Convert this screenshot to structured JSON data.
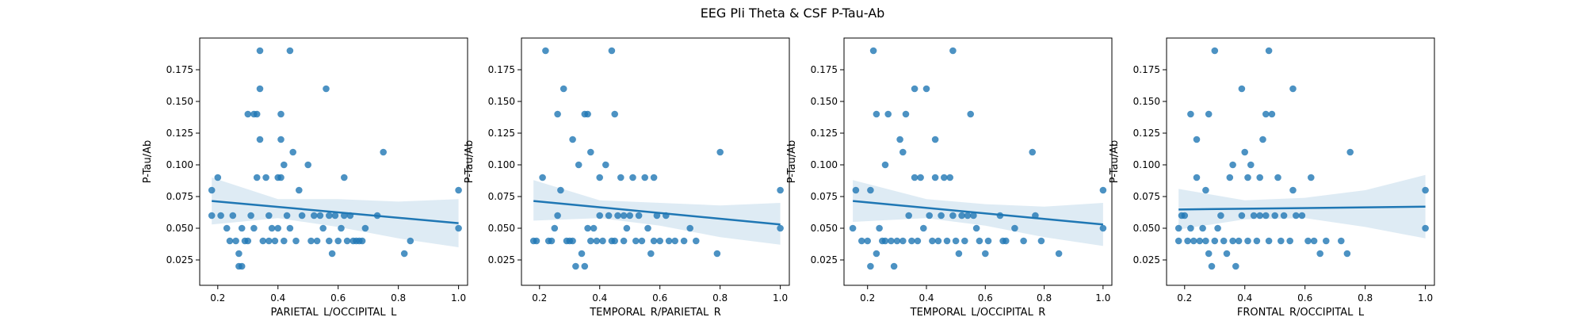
{
  "figure": {
    "title": "EEG Pli Theta & CSF P-Tau-Ab"
  },
  "style": {
    "point_color": "#1f77b4",
    "line_color": "#1f77b4",
    "band_color": "#1f77b4"
  },
  "chart_data": [
    {
      "type": "scatter",
      "xlabel": "PARIETAL_L/OCCIPITAL_L",
      "ylabel": "P-Tau/Ab",
      "xlim": [
        0.14,
        1.03
      ],
      "ylim": [
        0.005,
        0.2
      ],
      "xticks": [
        0.2,
        0.4,
        0.6,
        0.8,
        1.0
      ],
      "xtick_labels": [
        "0.2",
        "0.4",
        "0.6",
        "0.8",
        "1.0"
      ],
      "yticks": [
        0.025,
        0.05,
        0.075,
        0.1,
        0.125,
        0.15,
        0.175
      ],
      "ytick_labels": [
        "0.025",
        "0.050",
        "0.075",
        "0.100",
        "0.125",
        "0.150",
        "0.175"
      ],
      "points": [
        [
          0.18,
          0.08
        ],
        [
          0.18,
          0.06
        ],
        [
          0.2,
          0.09
        ],
        [
          0.21,
          0.06
        ],
        [
          0.23,
          0.05
        ],
        [
          0.24,
          0.04
        ],
        [
          0.25,
          0.06
        ],
        [
          0.26,
          0.04
        ],
        [
          0.27,
          0.03
        ],
        [
          0.27,
          0.02
        ],
        [
          0.28,
          0.02
        ],
        [
          0.28,
          0.05
        ],
        [
          0.29,
          0.04
        ],
        [
          0.3,
          0.04
        ],
        [
          0.3,
          0.14
        ],
        [
          0.31,
          0.06
        ],
        [
          0.32,
          0.14
        ],
        [
          0.32,
          0.05
        ],
        [
          0.33,
          0.09
        ],
        [
          0.33,
          0.14
        ],
        [
          0.34,
          0.19
        ],
        [
          0.34,
          0.16
        ],
        [
          0.34,
          0.12
        ],
        [
          0.35,
          0.04
        ],
        [
          0.36,
          0.09
        ],
        [
          0.37,
          0.06
        ],
        [
          0.37,
          0.04
        ],
        [
          0.38,
          0.05
        ],
        [
          0.39,
          0.04
        ],
        [
          0.4,
          0.05
        ],
        [
          0.4,
          0.09
        ],
        [
          0.41,
          0.14
        ],
        [
          0.41,
          0.12
        ],
        [
          0.41,
          0.09
        ],
        [
          0.42,
          0.1
        ],
        [
          0.42,
          0.04
        ],
        [
          0.43,
          0.06
        ],
        [
          0.44,
          0.05
        ],
        [
          0.44,
          0.19
        ],
        [
          0.45,
          0.11
        ],
        [
          0.46,
          0.04
        ],
        [
          0.47,
          0.08
        ],
        [
          0.48,
          0.06
        ],
        [
          0.5,
          0.1
        ],
        [
          0.51,
          0.04
        ],
        [
          0.52,
          0.06
        ],
        [
          0.53,
          0.04
        ],
        [
          0.54,
          0.06
        ],
        [
          0.55,
          0.05
        ],
        [
          0.56,
          0.16
        ],
        [
          0.57,
          0.06
        ],
        [
          0.57,
          0.04
        ],
        [
          0.58,
          0.03
        ],
        [
          0.59,
          0.06
        ],
        [
          0.6,
          0.04
        ],
        [
          0.61,
          0.05
        ],
        [
          0.62,
          0.09
        ],
        [
          0.62,
          0.06
        ],
        [
          0.63,
          0.04
        ],
        [
          0.64,
          0.06
        ],
        [
          0.65,
          0.04
        ],
        [
          0.66,
          0.04
        ],
        [
          0.67,
          0.04
        ],
        [
          0.68,
          0.04
        ],
        [
          0.69,
          0.05
        ],
        [
          0.73,
          0.06
        ],
        [
          0.75,
          0.11
        ],
        [
          0.82,
          0.03
        ],
        [
          0.84,
          0.04
        ],
        [
          1.0,
          0.08
        ],
        [
          1.0,
          0.05
        ]
      ],
      "regression": {
        "x": [
          0.18,
          1.0
        ],
        "y": [
          0.0715,
          0.054
        ]
      },
      "ci_band": {
        "x": [
          0.18,
          0.4,
          0.6,
          0.8,
          1.0
        ],
        "lower": [
          0.053,
          0.058,
          0.051,
          0.042,
          0.035
        ],
        "upper": [
          0.09,
          0.073,
          0.073,
          0.071,
          0.073
        ]
      }
    },
    {
      "type": "scatter",
      "xlabel": "TEMPORAL_R/PARIETAL_R",
      "ylabel": "P-Tau/Ab",
      "xlim": [
        0.14,
        1.03
      ],
      "ylim": [
        0.005,
        0.2
      ],
      "xticks": [
        0.2,
        0.4,
        0.6,
        0.8,
        1.0
      ],
      "xtick_labels": [
        "0.2",
        "0.4",
        "0.6",
        "0.8",
        "1.0"
      ],
      "yticks": [
        0.025,
        0.05,
        0.075,
        0.1,
        0.125,
        0.15,
        0.175
      ],
      "ytick_labels": [
        "0.025",
        "0.050",
        "0.075",
        "0.100",
        "0.125",
        "0.150",
        "0.175"
      ],
      "points": [
        [
          0.18,
          0.04
        ],
        [
          0.19,
          0.04
        ],
        [
          0.21,
          0.09
        ],
        [
          0.22,
          0.19
        ],
        [
          0.23,
          0.04
        ],
        [
          0.24,
          0.04
        ],
        [
          0.25,
          0.05
        ],
        [
          0.26,
          0.14
        ],
        [
          0.26,
          0.06
        ],
        [
          0.27,
          0.08
        ],
        [
          0.28,
          0.16
        ],
        [
          0.29,
          0.04
        ],
        [
          0.3,
          0.04
        ],
        [
          0.31,
          0.12
        ],
        [
          0.31,
          0.04
        ],
        [
          0.32,
          0.02
        ],
        [
          0.33,
          0.1
        ],
        [
          0.34,
          0.03
        ],
        [
          0.35,
          0.02
        ],
        [
          0.35,
          0.14
        ],
        [
          0.36,
          0.14
        ],
        [
          0.36,
          0.05
        ],
        [
          0.37,
          0.11
        ],
        [
          0.37,
          0.04
        ],
        [
          0.38,
          0.05
        ],
        [
          0.39,
          0.04
        ],
        [
          0.4,
          0.06
        ],
        [
          0.4,
          0.09
        ],
        [
          0.41,
          0.04
        ],
        [
          0.42,
          0.1
        ],
        [
          0.43,
          0.06
        ],
        [
          0.44,
          0.19
        ],
        [
          0.44,
          0.04
        ],
        [
          0.45,
          0.14
        ],
        [
          0.45,
          0.04
        ],
        [
          0.46,
          0.06
        ],
        [
          0.47,
          0.09
        ],
        [
          0.48,
          0.06
        ],
        [
          0.48,
          0.04
        ],
        [
          0.49,
          0.05
        ],
        [
          0.5,
          0.06
        ],
        [
          0.51,
          0.09
        ],
        [
          0.52,
          0.04
        ],
        [
          0.53,
          0.06
        ],
        [
          0.54,
          0.04
        ],
        [
          0.55,
          0.09
        ],
        [
          0.56,
          0.05
        ],
        [
          0.57,
          0.03
        ],
        [
          0.58,
          0.09
        ],
        [
          0.58,
          0.04
        ],
        [
          0.59,
          0.06
        ],
        [
          0.6,
          0.04
        ],
        [
          0.62,
          0.06
        ],
        [
          0.63,
          0.04
        ],
        [
          0.65,
          0.04
        ],
        [
          0.68,
          0.04
        ],
        [
          0.7,
          0.05
        ],
        [
          0.72,
          0.04
        ],
        [
          0.79,
          0.03
        ],
        [
          0.8,
          0.11
        ],
        [
          1.0,
          0.08
        ],
        [
          1.0,
          0.05
        ]
      ],
      "regression": {
        "x": [
          0.18,
          1.0
        ],
        "y": [
          0.0715,
          0.053
        ]
      },
      "ci_band": {
        "x": [
          0.18,
          0.4,
          0.6,
          0.8,
          1.0
        ],
        "lower": [
          0.056,
          0.058,
          0.052,
          0.043,
          0.037
        ],
        "upper": [
          0.088,
          0.072,
          0.07,
          0.068,
          0.07
        ]
      }
    },
    {
      "type": "scatter",
      "xlabel": "TEMPORAL_L/OCCIPITAL_R",
      "ylabel": "P-Tau/Ab",
      "xlim": [
        0.12,
        1.03
      ],
      "ylim": [
        0.005,
        0.2
      ],
      "xticks": [
        0.2,
        0.4,
        0.6,
        0.8,
        1.0
      ],
      "xtick_labels": [
        "0.2",
        "0.4",
        "0.6",
        "0.8",
        "1.0"
      ],
      "yticks": [
        0.025,
        0.05,
        0.075,
        0.1,
        0.125,
        0.15,
        0.175
      ],
      "ytick_labels": [
        "0.025",
        "0.050",
        "0.075",
        "0.100",
        "0.125",
        "0.150",
        "0.175"
      ],
      "points": [
        [
          0.15,
          0.05
        ],
        [
          0.16,
          0.08
        ],
        [
          0.18,
          0.04
        ],
        [
          0.2,
          0.04
        ],
        [
          0.21,
          0.08
        ],
        [
          0.21,
          0.02
        ],
        [
          0.22,
          0.19
        ],
        [
          0.23,
          0.03
        ],
        [
          0.23,
          0.14
        ],
        [
          0.24,
          0.05
        ],
        [
          0.25,
          0.04
        ],
        [
          0.26,
          0.04
        ],
        [
          0.26,
          0.1
        ],
        [
          0.27,
          0.14
        ],
        [
          0.28,
          0.04
        ],
        [
          0.29,
          0.02
        ],
        [
          0.3,
          0.04
        ],
        [
          0.31,
          0.12
        ],
        [
          0.32,
          0.11
        ],
        [
          0.32,
          0.04
        ],
        [
          0.33,
          0.14
        ],
        [
          0.34,
          0.06
        ],
        [
          0.35,
          0.04
        ],
        [
          0.36,
          0.09
        ],
        [
          0.36,
          0.16
        ],
        [
          0.37,
          0.04
        ],
        [
          0.38,
          0.09
        ],
        [
          0.39,
          0.05
        ],
        [
          0.4,
          0.16
        ],
        [
          0.41,
          0.06
        ],
        [
          0.42,
          0.04
        ],
        [
          0.43,
          0.12
        ],
        [
          0.43,
          0.09
        ],
        [
          0.44,
          0.04
        ],
        [
          0.45,
          0.06
        ],
        [
          0.46,
          0.09
        ],
        [
          0.47,
          0.04
        ],
        [
          0.48,
          0.09
        ],
        [
          0.49,
          0.19
        ],
        [
          0.49,
          0.06
        ],
        [
          0.5,
          0.04
        ],
        [
          0.51,
          0.03
        ],
        [
          0.52,
          0.06
        ],
        [
          0.53,
          0.04
        ],
        [
          0.54,
          0.06
        ],
        [
          0.55,
          0.14
        ],
        [
          0.56,
          0.06
        ],
        [
          0.57,
          0.05
        ],
        [
          0.58,
          0.04
        ],
        [
          0.6,
          0.03
        ],
        [
          0.61,
          0.04
        ],
        [
          0.65,
          0.06
        ],
        [
          0.66,
          0.04
        ],
        [
          0.67,
          0.04
        ],
        [
          0.7,
          0.05
        ],
        [
          0.73,
          0.04
        ],
        [
          0.76,
          0.11
        ],
        [
          0.77,
          0.06
        ],
        [
          0.79,
          0.04
        ],
        [
          0.85,
          0.03
        ],
        [
          1.0,
          0.08
        ],
        [
          1.0,
          0.05
        ]
      ],
      "regression": {
        "x": [
          0.15,
          1.0
        ],
        "y": [
          0.0715,
          0.053
        ]
      },
      "ci_band": {
        "x": [
          0.15,
          0.4,
          0.6,
          0.8,
          1.0
        ],
        "lower": [
          0.055,
          0.058,
          0.052,
          0.043,
          0.036
        ],
        "upper": [
          0.088,
          0.073,
          0.069,
          0.067,
          0.07
        ]
      }
    },
    {
      "type": "scatter",
      "xlabel": "FRONTAL_R/OCCIPITAL_L",
      "ylabel": "P-Tau/Ab",
      "xlim": [
        0.14,
        1.03
      ],
      "ylim": [
        0.005,
        0.2
      ],
      "xticks": [
        0.2,
        0.4,
        0.6,
        0.8,
        1.0
      ],
      "xtick_labels": [
        "0.2",
        "0.4",
        "0.6",
        "0.8",
        "1.0"
      ],
      "yticks": [
        0.025,
        0.05,
        0.075,
        0.1,
        0.125,
        0.15,
        0.175
      ],
      "ytick_labels": [
        "0.025",
        "0.050",
        "0.075",
        "0.100",
        "0.125",
        "0.150",
        "0.175"
      ],
      "points": [
        [
          0.18,
          0.05
        ],
        [
          0.18,
          0.04
        ],
        [
          0.19,
          0.06
        ],
        [
          0.2,
          0.06
        ],
        [
          0.21,
          0.04
        ],
        [
          0.22,
          0.05
        ],
        [
          0.22,
          0.14
        ],
        [
          0.23,
          0.04
        ],
        [
          0.24,
          0.09
        ],
        [
          0.24,
          0.12
        ],
        [
          0.25,
          0.04
        ],
        [
          0.26,
          0.05
        ],
        [
          0.27,
          0.08
        ],
        [
          0.27,
          0.04
        ],
        [
          0.28,
          0.14
        ],
        [
          0.28,
          0.03
        ],
        [
          0.29,
          0.02
        ],
        [
          0.3,
          0.19
        ],
        [
          0.3,
          0.04
        ],
        [
          0.31,
          0.05
        ],
        [
          0.32,
          0.06
        ],
        [
          0.33,
          0.04
        ],
        [
          0.34,
          0.03
        ],
        [
          0.35,
          0.09
        ],
        [
          0.36,
          0.1
        ],
        [
          0.36,
          0.04
        ],
        [
          0.37,
          0.02
        ],
        [
          0.38,
          0.04
        ],
        [
          0.39,
          0.16
        ],
        [
          0.39,
          0.06
        ],
        [
          0.4,
          0.11
        ],
        [
          0.41,
          0.09
        ],
        [
          0.41,
          0.04
        ],
        [
          0.42,
          0.1
        ],
        [
          0.43,
          0.06
        ],
        [
          0.44,
          0.04
        ],
        [
          0.45,
          0.09
        ],
        [
          0.45,
          0.06
        ],
        [
          0.46,
          0.12
        ],
        [
          0.47,
          0.14
        ],
        [
          0.47,
          0.06
        ],
        [
          0.48,
          0.19
        ],
        [
          0.48,
          0.04
        ],
        [
          0.49,
          0.14
        ],
        [
          0.5,
          0.06
        ],
        [
          0.51,
          0.09
        ],
        [
          0.52,
          0.04
        ],
        [
          0.53,
          0.06
        ],
        [
          0.55,
          0.04
        ],
        [
          0.56,
          0.16
        ],
        [
          0.56,
          0.08
        ],
        [
          0.57,
          0.06
        ],
        [
          0.59,
          0.06
        ],
        [
          0.61,
          0.04
        ],
        [
          0.62,
          0.09
        ],
        [
          0.63,
          0.04
        ],
        [
          0.65,
          0.03
        ],
        [
          0.67,
          0.04
        ],
        [
          0.72,
          0.04
        ],
        [
          0.74,
          0.03
        ],
        [
          0.75,
          0.11
        ],
        [
          1.0,
          0.08
        ],
        [
          1.0,
          0.05
        ]
      ],
      "regression": {
        "x": [
          0.18,
          1.0
        ],
        "y": [
          0.0648,
          0.067
        ]
      },
      "ci_band": {
        "x": [
          0.18,
          0.4,
          0.6,
          0.8,
          1.0
        ],
        "lower": [
          0.049,
          0.057,
          0.058,
          0.051,
          0.042
        ],
        "upper": [
          0.081,
          0.072,
          0.074,
          0.08,
          0.092
        ]
      }
    }
  ]
}
